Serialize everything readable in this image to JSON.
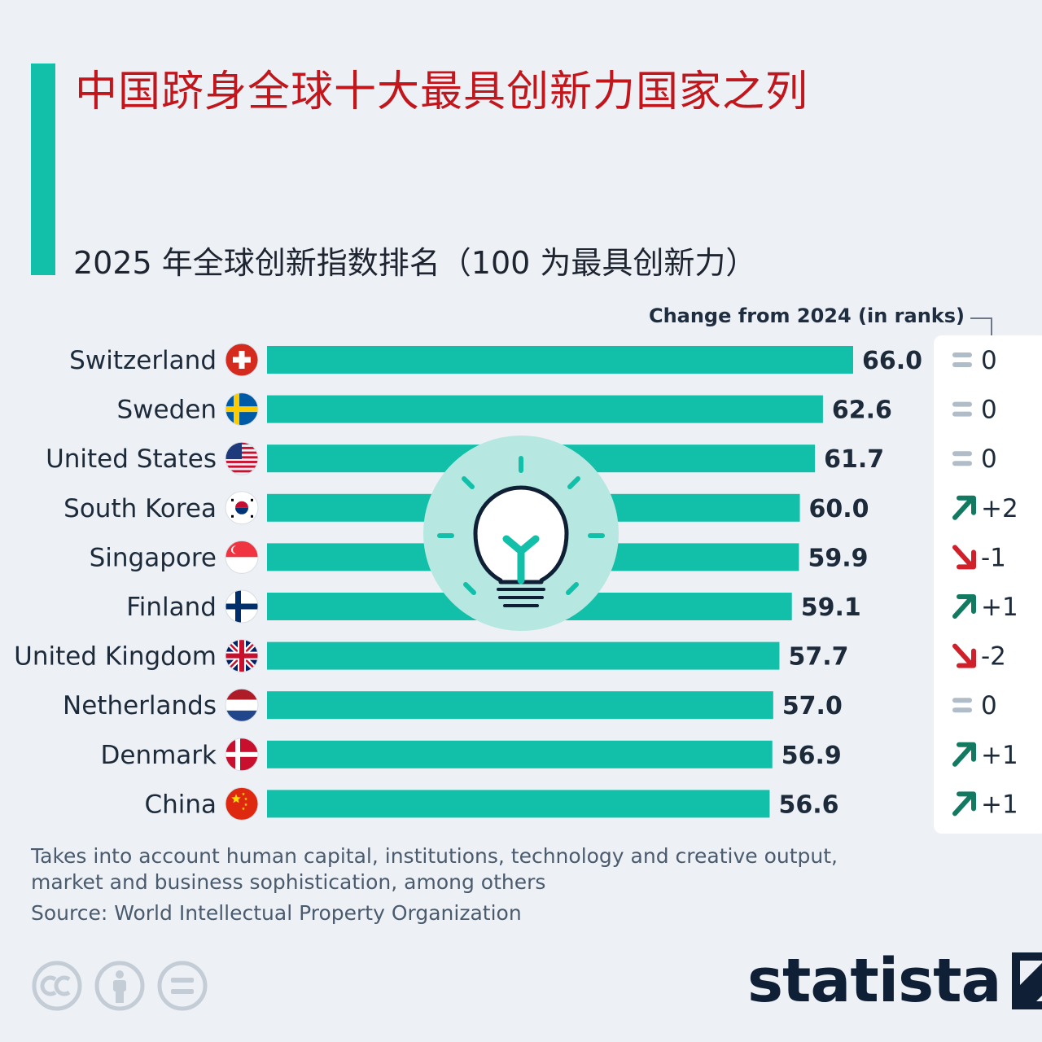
{
  "title": "中国跻身全球十大最具创新力国家之列",
  "subtitle": "2025 年全球创新指数排名（100 为最具创新力）",
  "change_header": "Change from 2024 (in ranks)",
  "note": "Takes into account human capital, institutions, technology and creative output, market and business sophistication, among others",
  "source": "Source: World Intellectual Property Organization",
  "brand": "statista",
  "colors": {
    "bar": "#12bfa8",
    "title": "#c0161c",
    "up": "#137a62",
    "down": "#d0202a",
    "same": "#b0bcc8",
    "bulb_circle": "#b6e8e1"
  },
  "icons": [
    "bulb-icon",
    "cc-icon",
    "attribution-icon",
    "no-derivatives-icon",
    "statista-logo-icon"
  ],
  "chart_data": {
    "type": "bar",
    "orientation": "horizontal",
    "categories": [
      "Switzerland",
      "Sweden",
      "United States",
      "South Korea",
      "Singapore",
      "Finland",
      "United Kingdom",
      "Netherlands",
      "Denmark",
      "China"
    ],
    "values": [
      66.0,
      62.6,
      61.7,
      60.0,
      59.9,
      59.1,
      57.7,
      57.0,
      56.9,
      56.6
    ],
    "value_labels": [
      "66.0",
      "62.6",
      "61.7",
      "60.0",
      "59.9",
      "59.1",
      "57.7",
      "57.0",
      "56.9",
      "56.6"
    ],
    "change_from_2024": [
      "0",
      "0",
      "0",
      "+2",
      "-1",
      "+1",
      "-2",
      "0",
      "+1",
      "+1"
    ],
    "xlim": [
      0,
      66.0
    ],
    "grid": false
  }
}
